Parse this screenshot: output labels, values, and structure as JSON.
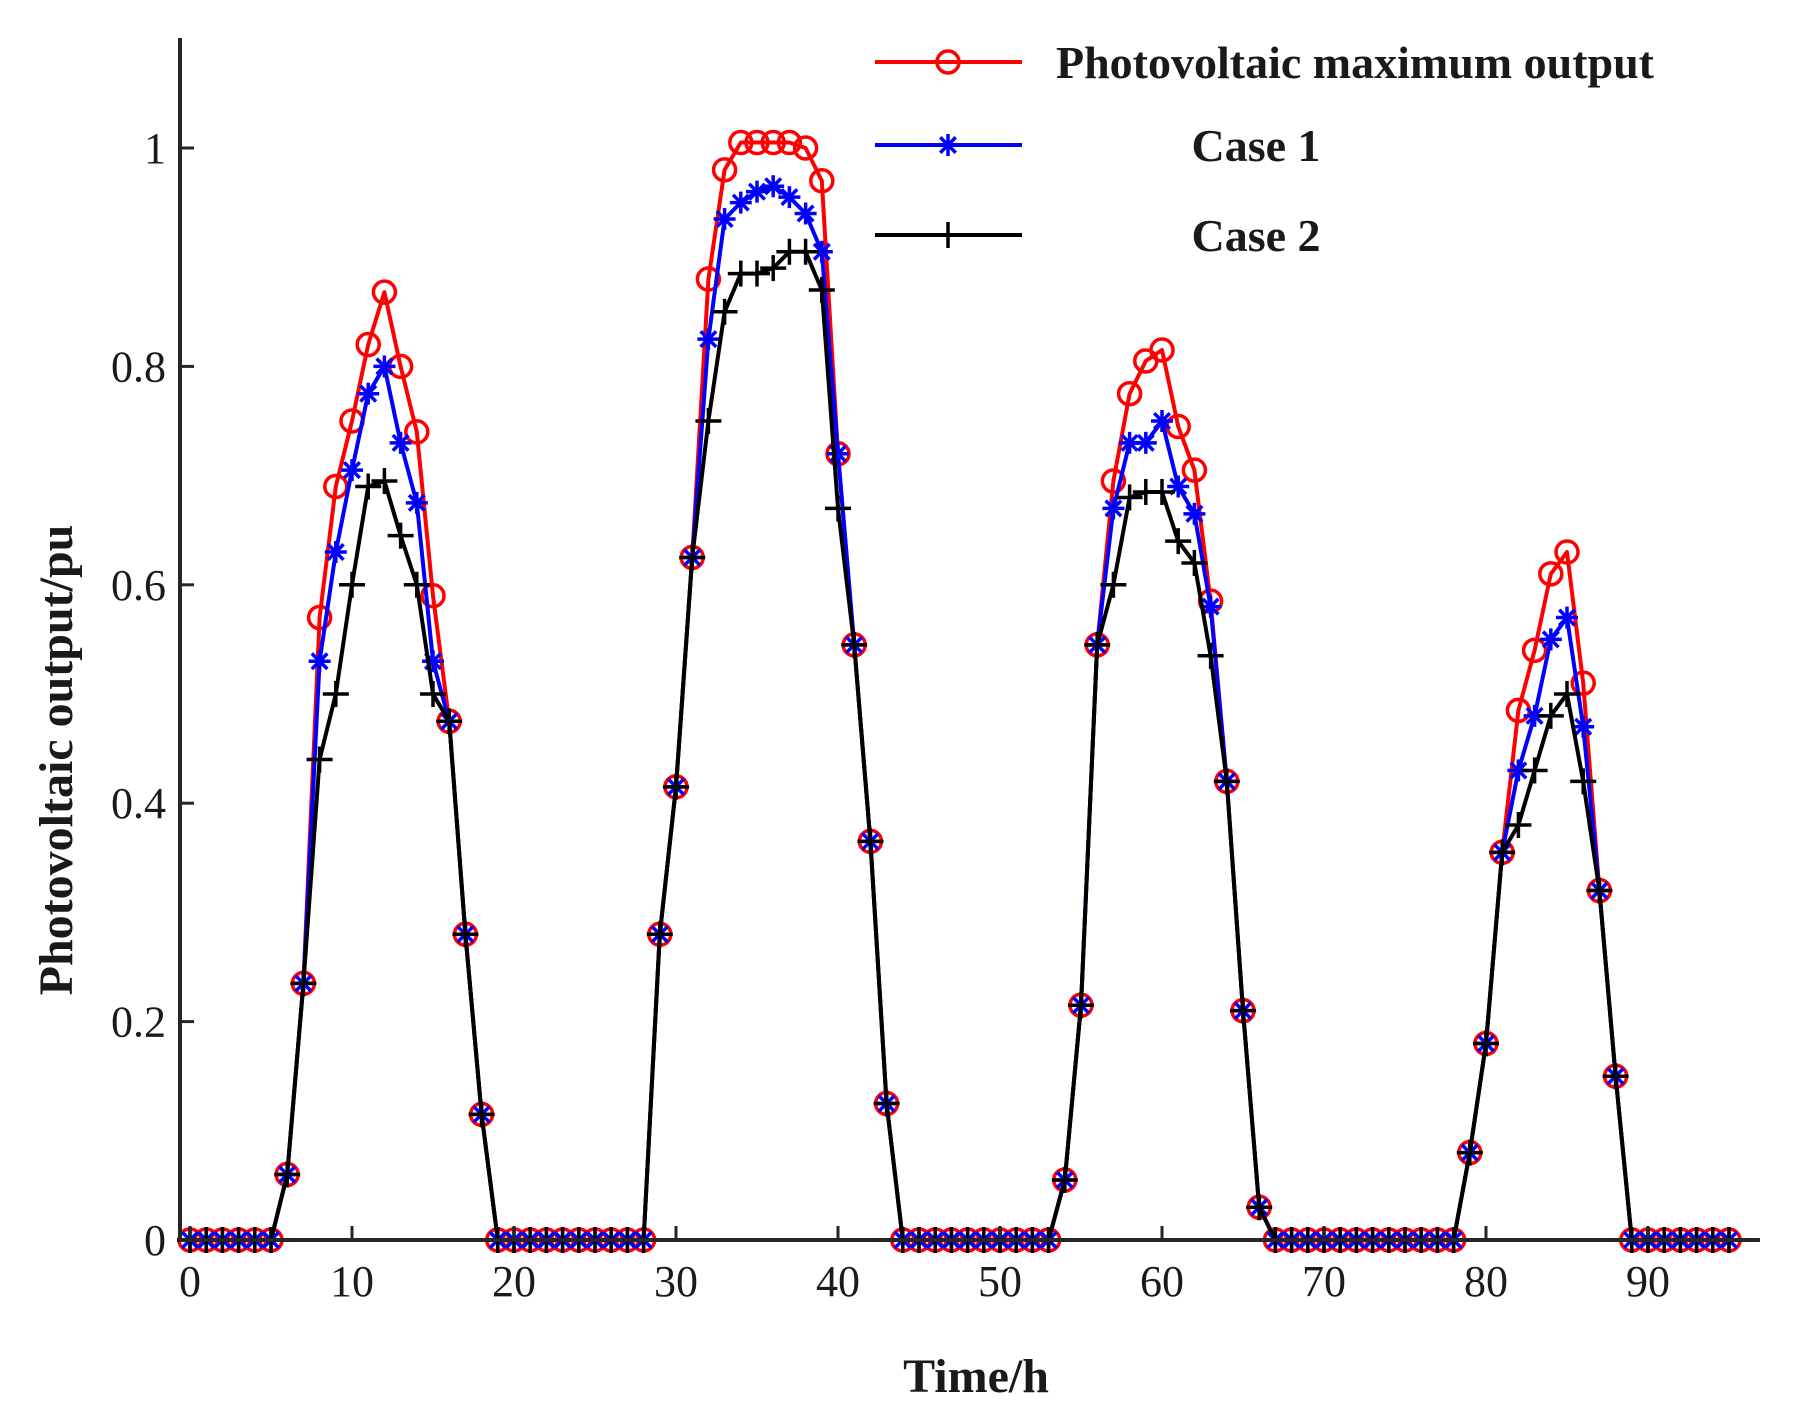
{
  "chart_data": {
    "type": "line",
    "title": "",
    "xlabel": "Time/h",
    "ylabel": "Photovoltaic output/pu",
    "xlim": [
      0,
      96
    ],
    "ylim": [
      0,
      1.1
    ],
    "xticks": [
      0,
      10,
      20,
      30,
      40,
      50,
      60,
      70,
      80,
      90
    ],
    "yticks": [
      0,
      0.2,
      0.4,
      0.6,
      0.8,
      1
    ],
    "ytick_labels": [
      "0",
      "0.2",
      "0.4",
      "0.6",
      "0.8",
      "1"
    ],
    "grid": false,
    "legend_position": "top-right",
    "x": [
      0,
      1,
      2,
      3,
      4,
      5,
      6,
      7,
      8,
      9,
      10,
      11,
      12,
      13,
      14,
      15,
      16,
      17,
      18,
      19,
      20,
      21,
      22,
      23,
      24,
      25,
      26,
      27,
      28,
      29,
      30,
      31,
      32,
      33,
      34,
      35,
      36,
      37,
      38,
      39,
      40,
      41,
      42,
      43,
      44,
      45,
      46,
      47,
      48,
      49,
      50,
      51,
      52,
      53,
      54,
      55,
      56,
      57,
      58,
      59,
      60,
      61,
      62,
      63,
      64,
      65,
      66,
      67,
      68,
      69,
      70,
      71,
      72,
      73,
      74,
      75,
      76,
      77,
      78,
      79,
      80,
      81,
      82,
      83,
      84,
      85,
      86,
      87,
      88,
      89,
      90,
      91,
      92,
      93,
      94,
      95
    ],
    "series": [
      {
        "name": "Photovoltaic maximum output",
        "color": "#ff0000",
        "marker": "circle",
        "values": [
          0,
          0,
          0,
          0,
          0,
          0,
          0.06,
          0.235,
          0.57,
          0.69,
          0.75,
          0.82,
          0.868,
          0.8,
          0.74,
          0.59,
          0.475,
          0.28,
          0.115,
          0,
          0,
          0,
          0,
          0,
          0,
          0,
          0,
          0,
          0,
          0.28,
          0.415,
          0.625,
          0.88,
          0.98,
          1.005,
          1.005,
          1.005,
          1.005,
          1.0,
          0.97,
          0.72,
          0.545,
          0.365,
          0.125,
          0,
          0,
          0,
          0,
          0,
          0,
          0,
          0,
          0,
          0,
          0.055,
          0.215,
          0.545,
          0.695,
          0.775,
          0.805,
          0.815,
          0.745,
          0.705,
          0.585,
          0.42,
          0.21,
          0.03,
          0,
          0,
          0,
          0,
          0,
          0,
          0,
          0,
          0,
          0,
          0,
          0,
          0.08,
          0.18,
          0.355,
          0.485,
          0.54,
          0.61,
          0.63,
          0.51,
          0.32,
          0.15,
          0,
          0,
          0,
          0,
          0,
          0,
          0
        ]
      },
      {
        "name": "Case 1",
        "color": "#0000ff",
        "marker": "asterisk",
        "values": [
          0,
          0,
          0,
          0,
          0,
          0,
          0.06,
          0.235,
          0.53,
          0.63,
          0.705,
          0.775,
          0.8,
          0.73,
          0.675,
          0.53,
          0.475,
          0.28,
          0.115,
          0,
          0,
          0,
          0,
          0,
          0,
          0,
          0,
          0,
          0,
          0.28,
          0.415,
          0.625,
          0.825,
          0.935,
          0.95,
          0.96,
          0.965,
          0.955,
          0.94,
          0.905,
          0.72,
          0.545,
          0.365,
          0.125,
          0,
          0,
          0,
          0,
          0,
          0,
          0,
          0,
          0,
          0,
          0.055,
          0.215,
          0.545,
          0.67,
          0.73,
          0.73,
          0.75,
          0.69,
          0.665,
          0.58,
          0.42,
          0.21,
          0.03,
          0,
          0,
          0,
          0,
          0,
          0,
          0,
          0,
          0,
          0,
          0,
          0,
          0.08,
          0.18,
          0.355,
          0.43,
          0.48,
          0.55,
          0.57,
          0.47,
          0.32,
          0.15,
          0,
          0,
          0,
          0,
          0,
          0,
          0
        ]
      },
      {
        "name": "Case 2",
        "color": "#000000",
        "marker": "plus",
        "values": [
          0,
          0,
          0,
          0,
          0,
          0,
          0.06,
          0.235,
          0.44,
          0.5,
          0.6,
          0.69,
          0.695,
          0.645,
          0.6,
          0.5,
          0.475,
          0.28,
          0.115,
          0,
          0,
          0,
          0,
          0,
          0,
          0,
          0,
          0,
          0,
          0.28,
          0.415,
          0.625,
          0.75,
          0.85,
          0.885,
          0.885,
          0.89,
          0.905,
          0.905,
          0.87,
          0.67,
          0.545,
          0.365,
          0.125,
          0,
          0,
          0,
          0,
          0,
          0,
          0,
          0,
          0,
          0,
          0.055,
          0.215,
          0.545,
          0.6,
          0.68,
          0.685,
          0.685,
          0.64,
          0.62,
          0.535,
          0.42,
          0.21,
          0.03,
          0,
          0,
          0,
          0,
          0,
          0,
          0,
          0,
          0,
          0,
          0,
          0,
          0.08,
          0.18,
          0.355,
          0.38,
          0.43,
          0.48,
          0.5,
          0.42,
          0.32,
          0.15,
          0,
          0,
          0,
          0,
          0,
          0,
          0
        ]
      }
    ]
  }
}
